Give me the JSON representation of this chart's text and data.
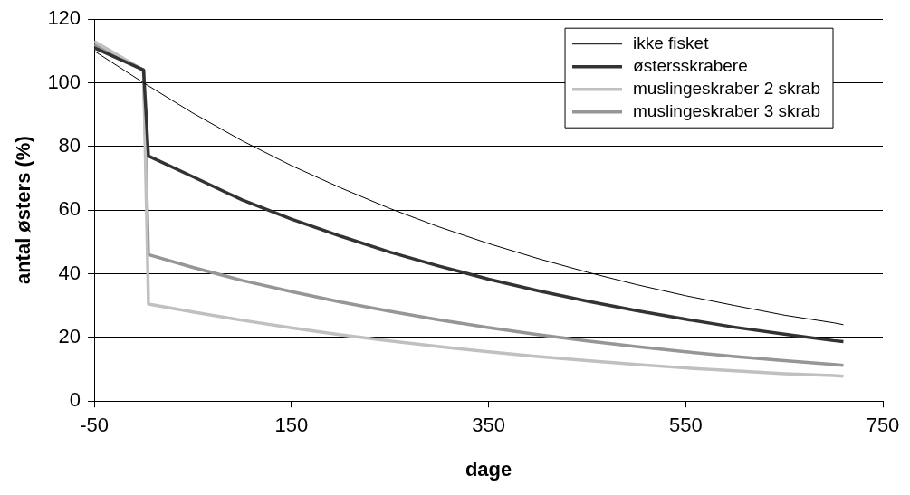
{
  "chart_data": {
    "type": "line",
    "xlabel": "dage",
    "ylabel": "antal østers (%)",
    "xlim": [
      -50,
      750
    ],
    "xticks": [
      -50,
      150,
      350,
      550,
      750
    ],
    "ylim": [
      0,
      120
    ],
    "yticks": [
      0,
      20,
      40,
      60,
      80,
      100,
      120
    ],
    "grid": "y",
    "legend": "top right",
    "marker": "none",
    "line_style": "solid",
    "series": [
      {
        "name": "ikke fisket",
        "color": "#000000",
        "x": [
          -50,
          0,
          50,
          100,
          150,
          200,
          250,
          300,
          350,
          400,
          450,
          500,
          550,
          600,
          650,
          700,
          710
        ],
        "values": [
          110,
          100,
          90.5,
          81.8,
          74,
          67,
          60.5,
          54.7,
          49.5,
          44.8,
          40.5,
          36.6,
          33.1,
          30,
          27,
          24.6,
          24
        ]
      },
      {
        "name": "østersskrabere",
        "color": "#333333",
        "x": [
          -50,
          0,
          5,
          50,
          100,
          150,
          200,
          250,
          300,
          350,
          400,
          450,
          500,
          550,
          600,
          650,
          700,
          710
        ],
        "values": [
          111,
          104,
          77,
          70.5,
          63.2,
          57.2,
          51.8,
          46.8,
          42.4,
          38.3,
          34.7,
          31.4,
          28.4,
          25.7,
          23.2,
          21,
          19,
          18.7
        ]
      },
      {
        "name": "muslingeskraber 2 skrab",
        "color": "#c0c0c0",
        "x": [
          -50,
          0,
          5,
          50,
          100,
          150,
          200,
          250,
          300,
          350,
          400,
          450,
          500,
          550,
          600,
          650,
          700,
          710
        ],
        "values": [
          113,
          104,
          30.5,
          28,
          25.4,
          23,
          20.8,
          18.9,
          17.1,
          15.5,
          14,
          12.7,
          11.5,
          10.4,
          9.5,
          8.6,
          8,
          7.8
        ]
      },
      {
        "name": "muslingeskraber 3 skrab",
        "color": "#969696",
        "x": [
          -50,
          0,
          5,
          50,
          100,
          150,
          200,
          250,
          300,
          350,
          400,
          450,
          500,
          550,
          600,
          650,
          700,
          710
        ],
        "values": [
          112,
          104,
          46,
          42,
          37.9,
          34.4,
          31.1,
          28.2,
          25.5,
          23.1,
          20.9,
          18.9,
          17.1,
          15.5,
          14,
          12.7,
          11.5,
          11.2
        ]
      }
    ]
  }
}
